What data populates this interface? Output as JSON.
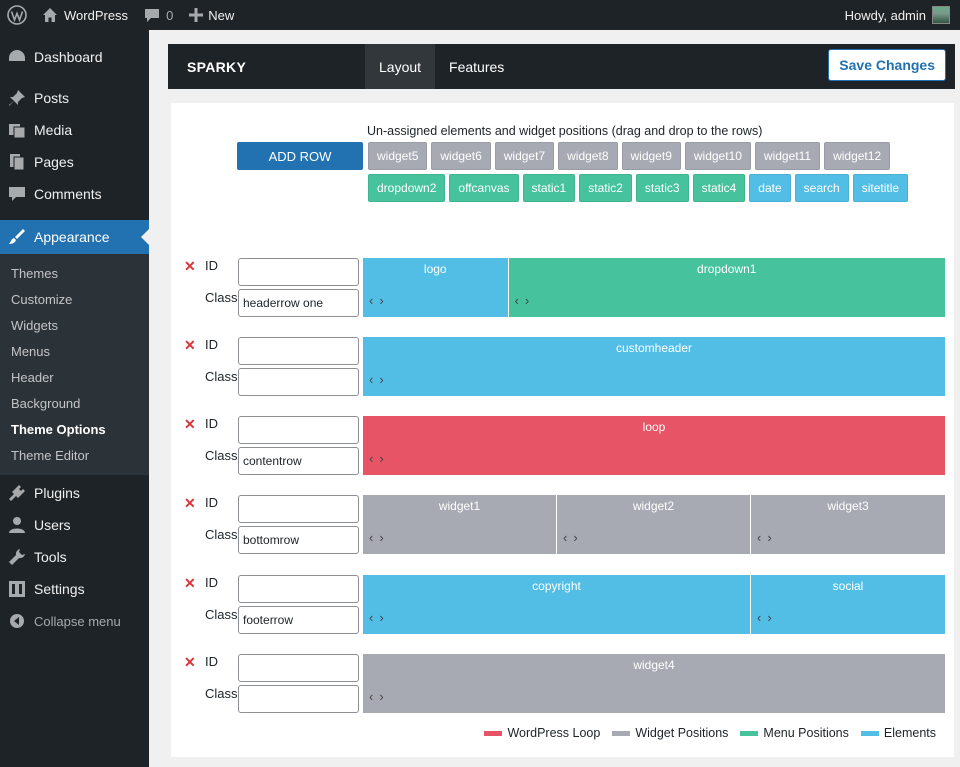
{
  "adminbar": {
    "site_name": "WordPress",
    "comments_count": "0",
    "new_label": "New",
    "greeting": "Howdy, admin"
  },
  "sidebar": {
    "items": [
      {
        "label": "Dashboard",
        "icon": "dashboard-icon"
      },
      {
        "label": "Posts",
        "icon": "pin-icon"
      },
      {
        "label": "Media",
        "icon": "media-icon"
      },
      {
        "label": "Pages",
        "icon": "pages-icon"
      },
      {
        "label": "Comments",
        "icon": "comment-icon"
      },
      {
        "label": "Appearance",
        "icon": "brush-icon"
      },
      {
        "label": "Plugins",
        "icon": "plug-icon"
      },
      {
        "label": "Users",
        "icon": "user-icon"
      },
      {
        "label": "Tools",
        "icon": "wrench-icon"
      },
      {
        "label": "Settings",
        "icon": "settings-icon"
      }
    ],
    "submenu": [
      "Themes",
      "Customize",
      "Widgets",
      "Menus",
      "Header",
      "Background",
      "Theme Options",
      "Theme Editor"
    ],
    "collapse_label": "Collapse menu"
  },
  "theme": {
    "name": "SPARKY",
    "tabs": [
      "Layout",
      "Features"
    ],
    "save_label": "Save Changes"
  },
  "layout": {
    "unassigned_title": "Un-assigned elements and widget positions (drag and drop to the rows)",
    "add_row_label": "ADD ROW",
    "chips": [
      {
        "label": "widget5",
        "type": "widget"
      },
      {
        "label": "widget6",
        "type": "widget"
      },
      {
        "label": "widget7",
        "type": "widget"
      },
      {
        "label": "widget8",
        "type": "widget"
      },
      {
        "label": "widget9",
        "type": "widget"
      },
      {
        "label": "widget10",
        "type": "widget"
      },
      {
        "label": "widget11",
        "type": "widget"
      },
      {
        "label": "widget12",
        "type": "widget"
      },
      {
        "label": "dropdown2",
        "type": "menu"
      },
      {
        "label": "offcanvas",
        "type": "menu"
      },
      {
        "label": "static1",
        "type": "menu"
      },
      {
        "label": "static2",
        "type": "menu"
      },
      {
        "label": "static3",
        "type": "menu"
      },
      {
        "label": "static4",
        "type": "menu"
      },
      {
        "label": "date",
        "type": "element"
      },
      {
        "label": "search",
        "type": "element"
      },
      {
        "label": "sitetitle",
        "type": "element"
      }
    ],
    "id_label": "ID",
    "class_label": "Class",
    "rows": [
      {
        "id": "",
        "class": "headerrow one",
        "blocks": [
          {
            "label": "logo",
            "type": "element",
            "span": 1
          },
          {
            "label": "dropdown1",
            "type": "menu",
            "span": 3
          }
        ]
      },
      {
        "id": "",
        "class": "",
        "blocks": [
          {
            "label": "customheader",
            "type": "element",
            "span": 4
          }
        ]
      },
      {
        "id": "",
        "class": "contentrow",
        "blocks": [
          {
            "label": "loop",
            "type": "loop",
            "span": 4
          }
        ]
      },
      {
        "id": "",
        "class": "bottomrow",
        "blocks": [
          {
            "label": "widget1",
            "type": "widget",
            "span": 1
          },
          {
            "label": "widget2",
            "type": "widget",
            "span": 1
          },
          {
            "label": "widget3",
            "type": "widget",
            "span": 1
          }
        ]
      },
      {
        "id": "",
        "class": "footerrow",
        "blocks": [
          {
            "label": "copyright",
            "type": "element",
            "span": 2
          },
          {
            "label": "social",
            "type": "element",
            "span": 1
          }
        ]
      },
      {
        "id": "",
        "class": "",
        "blocks": [
          {
            "label": "widget4",
            "type": "widget",
            "span": 1
          }
        ]
      }
    ],
    "legend": [
      {
        "label": "WordPress Loop",
        "color": "#e65466"
      },
      {
        "label": "Widget Positions",
        "color": "#a7aab3"
      },
      {
        "label": "Menu Positions",
        "color": "#46c39c"
      },
      {
        "label": "Elements",
        "color": "#52bee6"
      }
    ]
  }
}
